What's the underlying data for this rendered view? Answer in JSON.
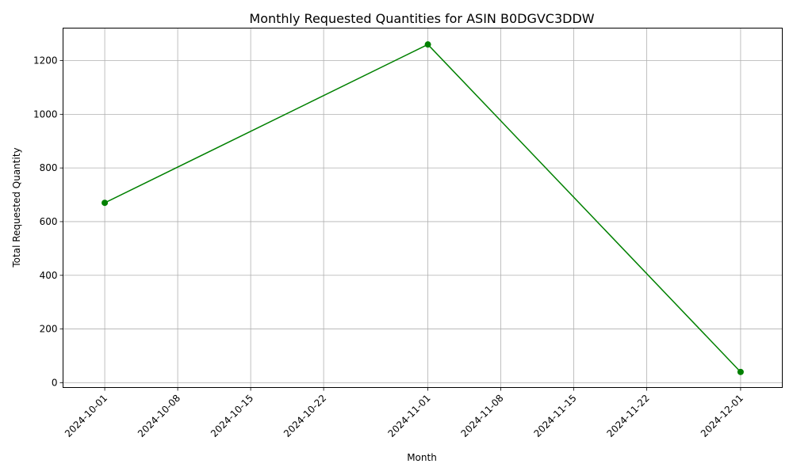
{
  "chart_data": {
    "type": "line",
    "title": "Monthly Requested Quantities for ASIN B0DGVC3DDW",
    "xlabel": "Month",
    "ylabel": "Total Requested Quantity",
    "x": [
      "2024-10-01",
      "2024-11-01",
      "2024-12-01"
    ],
    "series": [
      {
        "values": [
          670,
          1260,
          40
        ],
        "color": "#008000",
        "marker": "circle"
      }
    ],
    "xlim": [
      "2024-09-27",
      "2024-12-05"
    ],
    "ylim": [
      -18,
      1321
    ],
    "xticks": [
      "2024-10-01",
      "2024-10-08",
      "2024-10-15",
      "2024-10-22",
      "2024-11-01",
      "2024-11-08",
      "2024-11-15",
      "2024-11-22",
      "2024-12-01"
    ],
    "yticks": [
      0,
      200,
      400,
      600,
      800,
      1000,
      1200
    ],
    "grid": true,
    "legend": "none"
  }
}
